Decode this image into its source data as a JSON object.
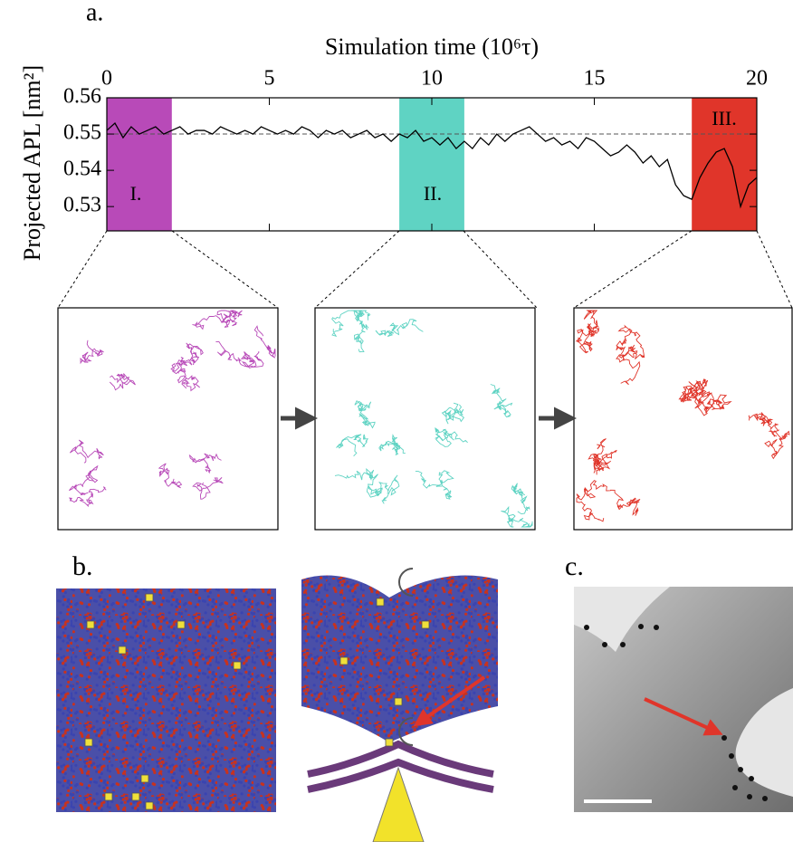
{
  "panel_labels": [
    "a.",
    "b.",
    "c."
  ],
  "chart_data": {
    "type": "line",
    "x_label": "Simulation time (10⁶τ)",
    "y_label": "Projected APL [nm²]",
    "xlim": [
      0,
      20
    ],
    "xticks": [
      0,
      5,
      10,
      15,
      20
    ],
    "ylim": [
      0.5233,
      0.56
    ],
    "yticks": [
      0.53,
      0.54,
      0.55,
      0.56
    ],
    "reference_line": 0.55,
    "regions": [
      {
        "label": "I.",
        "color": "#b84ab8",
        "x": [
          0,
          2
        ]
      },
      {
        "label": "II.",
        "color": "#5fd3c3",
        "x": [
          9,
          11
        ]
      },
      {
        "label": "III.",
        "color": "#e0352a",
        "x": [
          18,
          20
        ]
      }
    ],
    "x": [
      0,
      0.25,
      0.5,
      0.75,
      1,
      1.25,
      1.5,
      1.75,
      2,
      2.25,
      2.5,
      2.75,
      3,
      3.25,
      3.5,
      3.75,
      4,
      4.25,
      4.5,
      4.75,
      5,
      5.25,
      5.5,
      5.75,
      6,
      6.25,
      6.5,
      6.75,
      7,
      7.25,
      7.5,
      7.75,
      8,
      8.25,
      8.5,
      8.75,
      9,
      9.25,
      9.5,
      9.75,
      10,
      10.25,
      10.5,
      10.75,
      11,
      11.25,
      11.5,
      11.75,
      12,
      12.25,
      12.5,
      12.75,
      13,
      13.25,
      13.5,
      13.75,
      14,
      14.25,
      14.5,
      14.75,
      15,
      15.25,
      15.5,
      15.75,
      16,
      16.25,
      16.5,
      16.75,
      17,
      17.25,
      17.5,
      17.75,
      18,
      18.25,
      18.5,
      18.75,
      19,
      19.25,
      19.5,
      19.75,
      20
    ],
    "series": [
      {
        "color": "#000000",
        "values": [
          0.551,
          0.553,
          0.549,
          0.552,
          0.55,
          0.551,
          0.552,
          0.55,
          0.551,
          0.552,
          0.55,
          0.551,
          0.551,
          0.55,
          0.552,
          0.551,
          0.55,
          0.551,
          0.55,
          0.552,
          0.551,
          0.55,
          0.551,
          0.55,
          0.552,
          0.551,
          0.549,
          0.551,
          0.55,
          0.551,
          0.549,
          0.55,
          0.551,
          0.549,
          0.55,
          0.548,
          0.55,
          0.549,
          0.551,
          0.548,
          0.549,
          0.547,
          0.549,
          0.546,
          0.548,
          0.546,
          0.549,
          0.547,
          0.55,
          0.548,
          0.55,
          0.551,
          0.552,
          0.55,
          0.548,
          0.549,
          0.547,
          0.548,
          0.546,
          0.549,
          0.548,
          0.546,
          0.544,
          0.545,
          0.547,
          0.545,
          0.542,
          0.544,
          0.541,
          0.543,
          0.536,
          0.533,
          0.532,
          0.538,
          0.542,
          0.545,
          0.546,
          0.541,
          0.53,
          0.536,
          0.538
        ]
      }
    ]
  }
}
